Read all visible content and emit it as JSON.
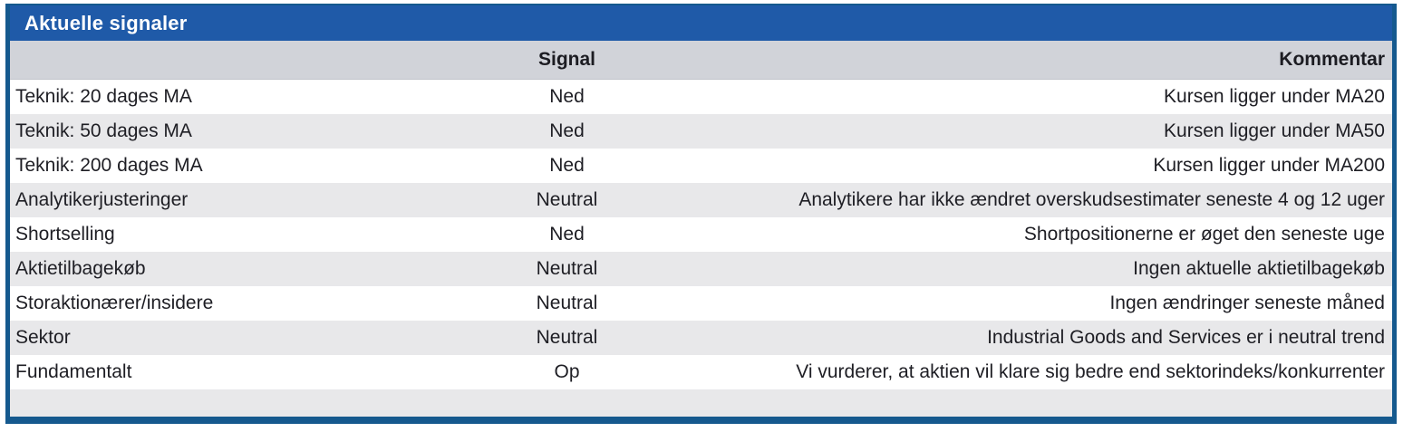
{
  "title": "Aktuelle signaler",
  "columns": {
    "signal": "Signal",
    "kommentar": "Kommentar"
  },
  "rows": [
    {
      "label": "Teknik: 20 dages MA",
      "signal": "Ned",
      "kommentar": "Kursen ligger under MA20"
    },
    {
      "label": "Teknik: 50 dages MA",
      "signal": "Ned",
      "kommentar": "Kursen ligger under MA50"
    },
    {
      "label": "Teknik: 200 dages MA",
      "signal": "Ned",
      "kommentar": "Kursen ligger under MA200"
    },
    {
      "label": "Analytikerjusteringer",
      "signal": "Neutral",
      "kommentar": "Analytikere har ikke ændret overskudsestimater seneste 4 og 12 uger"
    },
    {
      "label": "Shortselling",
      "signal": "Ned",
      "kommentar": "Shortpositionerne er øget den seneste uge"
    },
    {
      "label": "Aktietilbagekøb",
      "signal": "Neutral",
      "kommentar": "Ingen aktuelle aktietilbagekøb"
    },
    {
      "label": "Storaktionærer/insidere",
      "signal": "Neutral",
      "kommentar": "Ingen ændringer seneste måned"
    },
    {
      "label": "Sektor",
      "signal": "Neutral",
      "kommentar": "Industrial Goods and Services er i neutral trend"
    },
    {
      "label": "Fundamentalt",
      "signal": "Op",
      "kommentar": "Vi vurderer, at aktien vil klare sig bedre end sektorindeks/konkurrenter"
    }
  ],
  "colors": {
    "title_bar_bg": "#1F5AA8",
    "title_text": "#FFFFFF",
    "frame_accent": "#15598E",
    "header_bg": "#D1D3D9",
    "row_alt_bg": "#E8E8EA",
    "body_text": "#1E1E24"
  }
}
